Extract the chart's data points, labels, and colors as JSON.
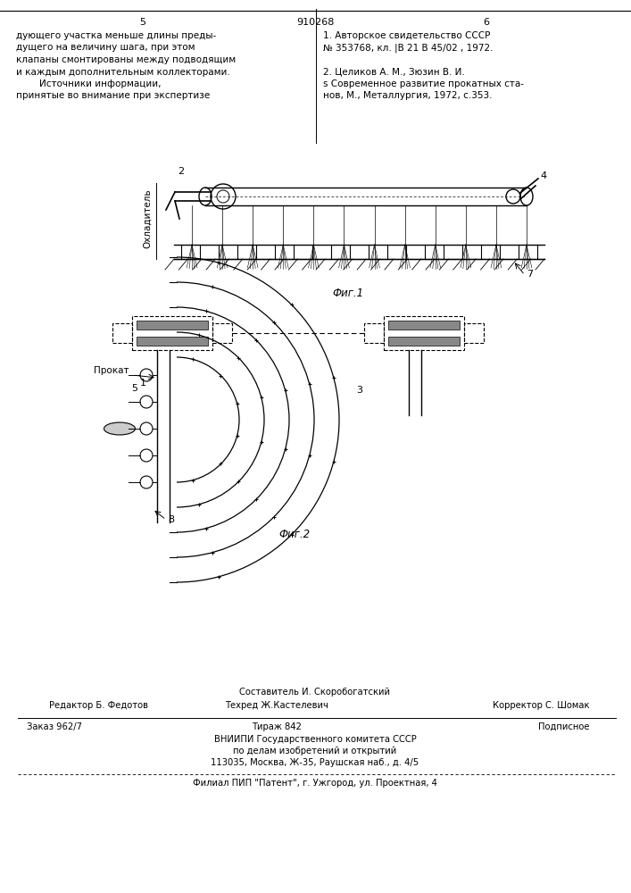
{
  "bg_color": "#ffffff",
  "page_number_top_left": "5",
  "page_number_top_center": "910268",
  "page_number_top_right": "6",
  "text_left_col": [
    "дующего участка меньше длины преды-",
    "дущего на величину шага, при этом",
    "клапаны смонтированы между подводящим",
    "и каждым дополнительным коллекторами.",
    "        Источники информации,",
    "принятые во внимание при экспертизе"
  ],
  "text_right_col": [
    "1. Авторское свидетельство СССР",
    "№ 353768, кл. |В 21 В 45/02 , 1972.",
    "",
    "2. Целиков А. М., Зюзин В. И.",
    "s Современное развитие прокатных ста-",
    "нов, М., Металлургия, 1972, с.353."
  ],
  "fig1_label": "Фиг.1",
  "fig2_label": "Фиг.2",
  "охладитель": "Охладитель",
  "footer_line1": "Составитель И. Скоробогатский",
  "footer_line2_left": "Редактор Б. Федотов",
  "footer_line2_center": "Техред Ж.Кастелевич",
  "footer_line2_right": "Корректор С. Шомак",
  "footer_line3_left": "Заказ 962/7",
  "footer_line3_center": "Тираж 842",
  "footer_line3_right": "Подписное",
  "footer_line4": "ВНИИПИ Государственного комитета СССР",
  "footer_line5": "по делам изобретений и открытий",
  "footer_line6": "113035, Москва, Ж-35, Раушская наб., д. 4/5",
  "footer_line7": "Филиал ПИП \"Патент\", г. Ужгород, ул. Проектная, 4"
}
